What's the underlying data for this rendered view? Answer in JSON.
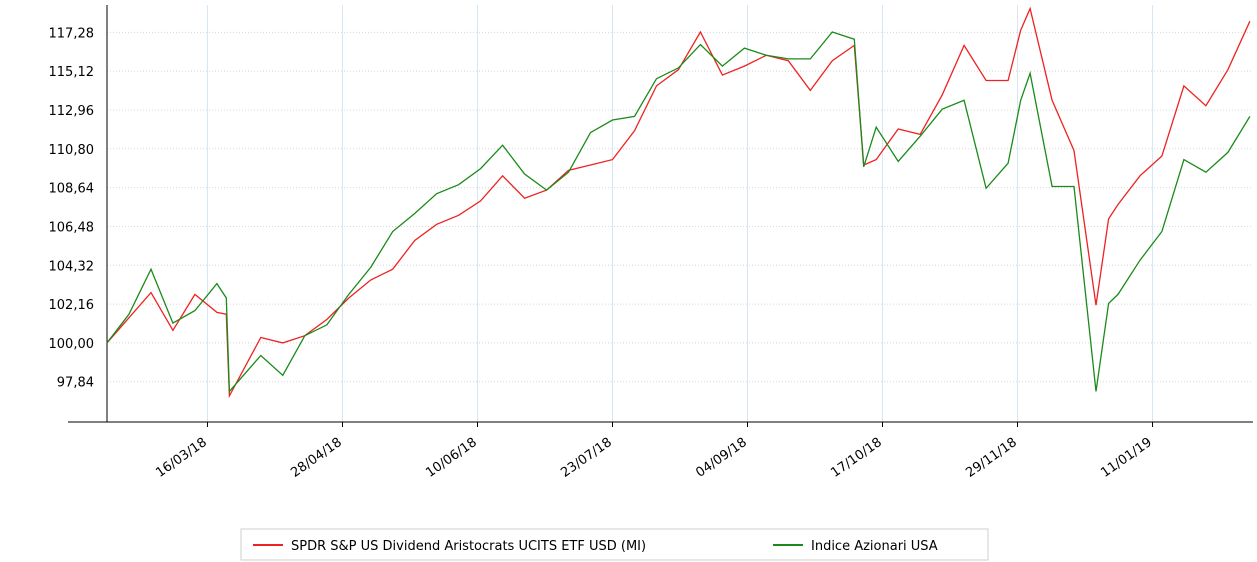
{
  "chart_data": {
    "type": "line",
    "x": [
      "2018-02-12",
      "2018-02-19",
      "2018-02-26",
      "2018-03-05",
      "2018-03-12",
      "2018-03-19",
      "2018-03-22",
      "2018-03-23",
      "2018-04-02",
      "2018-04-09",
      "2018-04-16",
      "2018-04-23",
      "2018-04-30",
      "2018-05-07",
      "2018-05-14",
      "2018-05-21",
      "2018-05-28",
      "2018-06-04",
      "2018-06-11",
      "2018-06-18",
      "2018-06-25",
      "2018-07-02",
      "2018-07-09",
      "2018-07-16",
      "2018-07-23",
      "2018-07-30",
      "2018-08-06",
      "2018-08-13",
      "2018-08-20",
      "2018-08-27",
      "2018-09-03",
      "2018-09-10",
      "2018-09-17",
      "2018-09-24",
      "2018-10-01",
      "2018-10-08",
      "2018-10-11",
      "2018-10-15",
      "2018-10-22",
      "2018-10-29",
      "2018-11-05",
      "2018-11-12",
      "2018-11-19",
      "2018-11-26",
      "2018-11-30",
      "2018-12-03",
      "2018-12-10",
      "2018-12-17",
      "2018-12-24",
      "2018-12-28",
      "2018-12-31",
      "2019-01-07",
      "2019-01-14",
      "2019-01-21",
      "2019-01-28",
      "2019-02-04",
      "2019-02-11"
    ],
    "series": [
      {
        "name": "SPDR S&P US Dividend Aristocrats UCITS ETF USD (MI)",
        "color": "#ee2222",
        "values": [
          100.0,
          101.4,
          102.8,
          100.7,
          102.7,
          101.7,
          101.6,
          97.05,
          100.3,
          100.0,
          100.4,
          101.3,
          102.5,
          103.5,
          104.1,
          105.7,
          106.6,
          107.1,
          107.9,
          109.3,
          108.05,
          108.5,
          109.6,
          109.9,
          110.2,
          111.8,
          114.3,
          115.2,
          117.3,
          114.9,
          115.4,
          116.0,
          115.7,
          114.05,
          115.7,
          116.55,
          109.9,
          110.2,
          111.9,
          111.6,
          113.8,
          116.55,
          114.6,
          114.6,
          117.4,
          118.6,
          113.5,
          110.7,
          102.1,
          106.9,
          107.7,
          109.3,
          110.4,
          114.3,
          113.2,
          115.2,
          117.9
        ]
      },
      {
        "name": "Indice Azionari USA",
        "color": "#1a8a1a",
        "values": [
          100.0,
          101.6,
          104.1,
          101.1,
          101.8,
          103.3,
          102.5,
          97.3,
          99.3,
          98.2,
          100.4,
          101.0,
          102.7,
          104.2,
          106.2,
          107.2,
          108.3,
          108.8,
          109.7,
          111.0,
          109.4,
          108.5,
          109.5,
          111.7,
          112.4,
          112.6,
          114.7,
          115.3,
          116.6,
          115.4,
          116.4,
          116.0,
          115.8,
          115.8,
          117.3,
          116.9,
          109.8,
          112.0,
          110.1,
          111.5,
          113.0,
          113.5,
          108.6,
          110.0,
          113.5,
          115.0,
          108.7,
          108.7,
          97.3,
          102.2,
          102.7,
          104.6,
          106.2,
          110.2,
          109.5,
          110.6,
          112.6
        ]
      }
    ],
    "xlim": [
      "2018-02-12",
      "2019-02-12"
    ],
    "xticks": [
      {
        "value": "2018-03-16",
        "label": "16/03/18"
      },
      {
        "value": "2018-04-28",
        "label": "28/04/18"
      },
      {
        "value": "2018-06-10",
        "label": "10/06/18"
      },
      {
        "value": "2018-07-23",
        "label": "23/07/18"
      },
      {
        "value": "2018-09-04",
        "label": "04/09/18"
      },
      {
        "value": "2018-10-17",
        "label": "17/10/18"
      },
      {
        "value": "2018-11-29",
        "label": "29/11/18"
      },
      {
        "value": "2019-01-11",
        "label": "11/01/19"
      }
    ],
    "ylim": [
      95.6,
      118.8
    ],
    "yticks": [
      {
        "value": 97.84,
        "label": "97,84"
      },
      {
        "value": 100.0,
        "label": "100,00"
      },
      {
        "value": 102.16,
        "label": "102,16"
      },
      {
        "value": 104.32,
        "label": "104,32"
      },
      {
        "value": 106.48,
        "label": "106,48"
      },
      {
        "value": 108.64,
        "label": "108,64"
      },
      {
        "value": 110.8,
        "label": "110,80"
      },
      {
        "value": 112.96,
        "label": "112,96"
      },
      {
        "value": 115.12,
        "label": "115,12"
      },
      {
        "value": 117.28,
        "label": "117,28"
      }
    ],
    "grid": true
  }
}
